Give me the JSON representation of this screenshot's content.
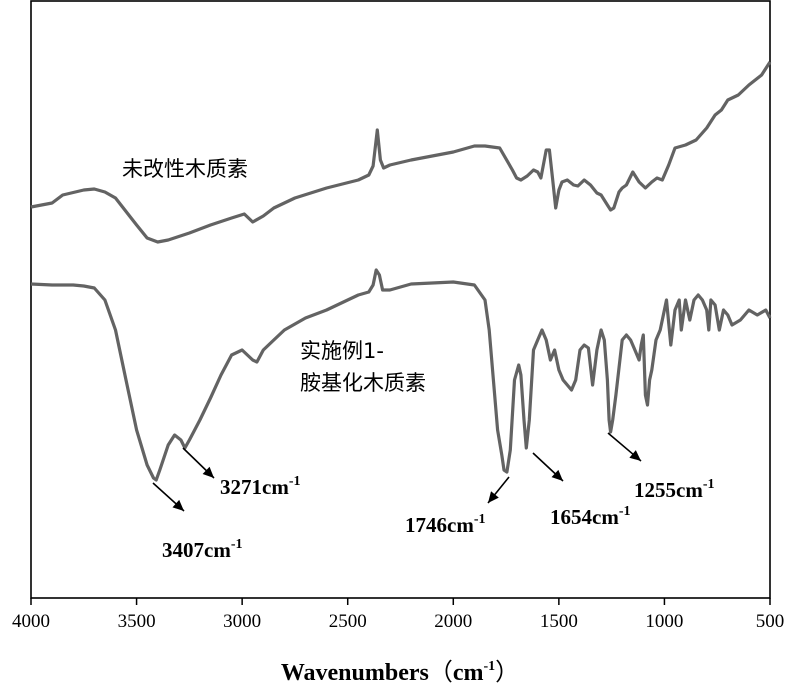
{
  "chart_data": {
    "type": "line",
    "title": "",
    "xlabel": "Wavenumbers",
    "xlabel_unit_open": "（",
    "xlabel_unit_base": "cm",
    "xlabel_unit_sup": "-1",
    "xlabel_unit_close": "）",
    "ylabel": "",
    "xlim": [
      4000,
      500
    ],
    "x_reversed": true,
    "x_ticks": [
      4000,
      3500,
      3000,
      2500,
      2000,
      1500,
      1000,
      500
    ],
    "x_tick_labels": [
      "4000",
      "3500",
      "3000",
      "2500",
      "2000",
      "1500",
      "1000",
      "500"
    ],
    "y_ticks_shown": false,
    "grid": false,
    "line_color": "#636363",
    "series": [
      {
        "name": "未改性木质素",
        "x": [
          4000,
          3900,
          3850,
          3750,
          3700,
          3650,
          3600,
          3500,
          3450,
          3400,
          3350,
          3250,
          3150,
          3050,
          2990,
          2950,
          2900,
          2850,
          2750,
          2600,
          2450,
          2400,
          2380,
          2360,
          2345,
          2330,
          2300,
          2200,
          2000,
          1900,
          1850,
          1780,
          1720,
          1700,
          1680,
          1650,
          1620,
          1600,
          1585,
          1560,
          1545,
          1530,
          1515,
          1500,
          1485,
          1460,
          1430,
          1410,
          1380,
          1350,
          1320,
          1300,
          1270,
          1255,
          1240,
          1215,
          1200,
          1180,
          1150,
          1120,
          1090,
          1060,
          1035,
          1010,
          980,
          950,
          900,
          850,
          800,
          760,
          730,
          700,
          650,
          600,
          540,
          500
        ],
        "y": [
          207,
          203,
          195,
          190,
          189,
          192,
          198,
          225,
          238,
          242,
          240,
          233,
          225,
          218,
          214,
          222,
          216,
          208,
          198,
          188,
          180,
          175,
          166,
          130,
          160,
          168,
          165,
          160,
          152,
          146,
          146,
          148,
          170,
          178,
          180,
          176,
          170,
          172,
          178,
          150,
          150,
          178,
          208,
          190,
          182,
          180,
          185,
          186,
          180,
          185,
          193,
          195,
          205,
          210,
          208,
          192,
          188,
          185,
          172,
          182,
          188,
          182,
          178,
          180,
          165,
          148,
          145,
          140,
          128,
          115,
          110,
          100,
          95,
          85,
          75,
          62
        ]
      },
      {
        "name_line1": "实施例1-",
        "name_line2": "胺基化木质素",
        "x": [
          4000,
          3900,
          3800,
          3750,
          3700,
          3650,
          3600,
          3550,
          3500,
          3450,
          3420,
          3407,
          3390,
          3350,
          3320,
          3290,
          3271,
          3250,
          3200,
          3150,
          3100,
          3050,
          3000,
          2950,
          2930,
          2900,
          2850,
          2800,
          2700,
          2600,
          2500,
          2450,
          2400,
          2380,
          2365,
          2350,
          2335,
          2300,
          2200,
          2100,
          2000,
          1900,
          1850,
          1830,
          1810,
          1790,
          1770,
          1760,
          1746,
          1730,
          1710,
          1690,
          1680,
          1665,
          1654,
          1640,
          1620,
          1600,
          1580,
          1560,
          1540,
          1520,
          1500,
          1480,
          1460,
          1440,
          1420,
          1400,
          1380,
          1360,
          1340,
          1320,
          1300,
          1285,
          1270,
          1262,
          1255,
          1245,
          1230,
          1200,
          1180,
          1160,
          1140,
          1120,
          1110,
          1100,
          1090,
          1080,
          1070,
          1060,
          1040,
          1020,
          1000,
          990,
          970,
          950,
          930,
          920,
          900,
          880,
          860,
          840,
          820,
          800,
          790,
          780,
          760,
          740,
          720,
          700,
          680,
          640,
          600,
          560,
          520,
          500
        ],
        "y": [
          284,
          285,
          285,
          286,
          288,
          300,
          330,
          380,
          430,
          465,
          478,
          480,
          470,
          445,
          435,
          440,
          448,
          440,
          420,
          398,
          375,
          355,
          350,
          360,
          362,
          350,
          340,
          330,
          318,
          310,
          300,
          295,
          292,
          285,
          270,
          275,
          290,
          290,
          284,
          283,
          282,
          285,
          300,
          330,
          380,
          430,
          455,
          470,
          472,
          450,
          380,
          365,
          375,
          420,
          448,
          420,
          350,
          340,
          330,
          340,
          360,
          350,
          370,
          380,
          385,
          390,
          380,
          350,
          345,
          348,
          385,
          350,
          330,
          340,
          380,
          420,
          432,
          420,
          395,
          340,
          335,
          340,
          350,
          360,
          345,
          335,
          395,
          405,
          380,
          370,
          340,
          330,
          310,
          300,
          345,
          310,
          300,
          330,
          300,
          320,
          300,
          295,
          300,
          310,
          330,
          300,
          305,
          330,
          310,
          315,
          325,
          320,
          310,
          315,
          310,
          318
        ]
      }
    ],
    "annotations": [
      {
        "value": "3407",
        "unit": "cm",
        "sup": "-1",
        "peak_x": 3407
      },
      {
        "value": "3271",
        "unit": "cm",
        "sup": "-1",
        "peak_x": 3271
      },
      {
        "value": "1746",
        "unit": "cm",
        "sup": "-1",
        "peak_x": 1746
      },
      {
        "value": "1654",
        "unit": "cm",
        "sup": "-1",
        "peak_x": 1654
      },
      {
        "value": "1255",
        "unit": "cm",
        "sup": "-1",
        "peak_x": 1255
      }
    ]
  }
}
